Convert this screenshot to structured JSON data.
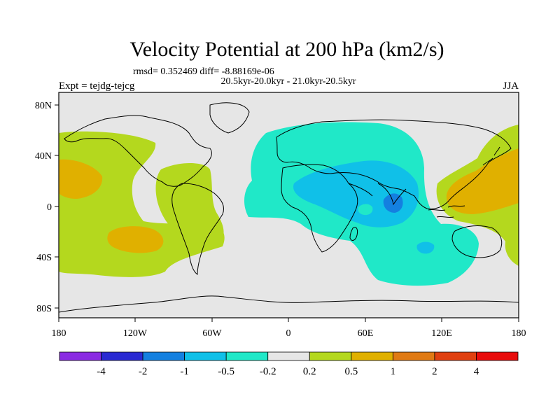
{
  "title": "Velocity Potential at 200 hPa (km2/s)",
  "stats_line": "rmsd= 0.352469 diff= -8.88169e-06",
  "period_line": "20.5kyr-20.0kyr - 21.0kyr-20.5kyr",
  "left_label": "Expt = tejdg-tejcg",
  "right_label": "JJA",
  "lat_ticks": [
    "80N",
    "40N",
    "0",
    "40S",
    "80S"
  ],
  "lon_ticks": [
    "180",
    "120W",
    "60W",
    "0",
    "60E",
    "120E",
    "180"
  ],
  "colorbar": {
    "labels": [
      "-4",
      "-2",
      "-1",
      "-0.5",
      "-0.2",
      "0.2",
      "0.5",
      "1",
      "2",
      "4"
    ],
    "colors": [
      "#8a2be2",
      "#2a2ad2",
      "#1480e0",
      "#10c0e8",
      "#20e8c8",
      "#e6e6e6",
      "#b4d81e",
      "#e0b000",
      "#e07a14",
      "#e04010",
      "#e80c0c"
    ]
  },
  "fields": {
    "background": "#e6e6e6",
    "neg_weak": "#20e8c8",
    "neg_mid": "#10c0e8",
    "neg_strong": "#1480e0",
    "pos_weak": "#b4d81e",
    "pos_mid": "#e0b000"
  }
}
